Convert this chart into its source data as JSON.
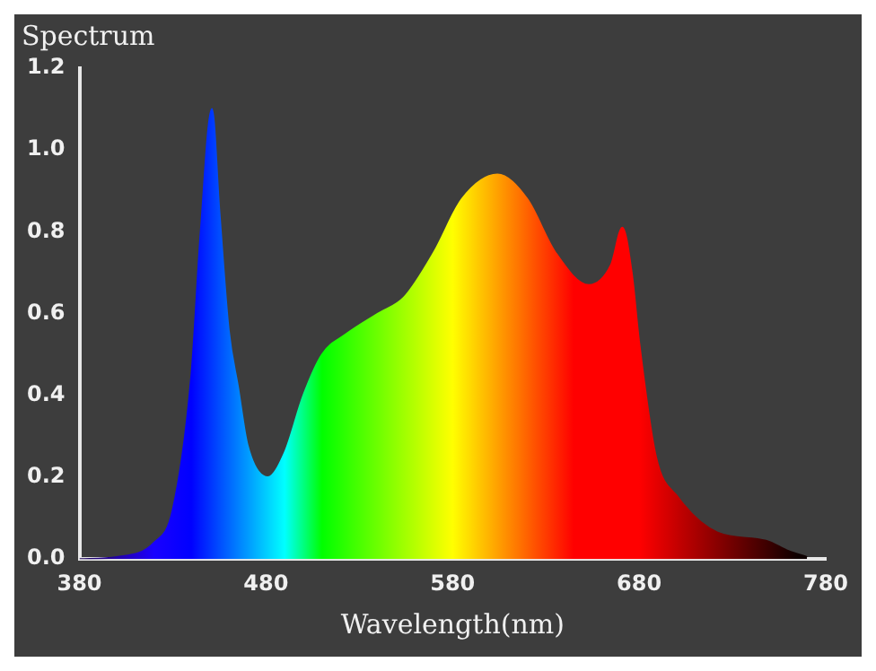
{
  "chart_data": {
    "type": "area",
    "title": "Spectrum",
    "xlabel": "Wavelength(nm)",
    "x": [
      380,
      400,
      420,
      430,
      440,
      445,
      451,
      455,
      460,
      465,
      470,
      481,
      490,
      500,
      510,
      523,
      540,
      554,
      570,
      585,
      604,
      620,
      635,
      653,
      665,
      671,
      676,
      680,
      689,
      701,
      722,
      748,
      760,
      770
    ],
    "values": [
      0,
      0.005,
      0.04,
      0.12,
      0.45,
      0.8,
      1.1,
      0.85,
      0.56,
      0.42,
      0.28,
      0.2,
      0.26,
      0.4,
      0.5,
      0.55,
      0.6,
      0.64,
      0.75,
      0.88,
      0.94,
      0.88,
      0.75,
      0.67,
      0.72,
      0.81,
      0.7,
      0.53,
      0.25,
      0.15,
      0.065,
      0.045,
      0.02,
      0.005
    ],
    "xlim": [
      380,
      780
    ],
    "xticks": [
      380,
      480,
      580,
      680,
      780
    ],
    "ylim": [
      0,
      1.2
    ],
    "yticks": [
      {
        "value": 0,
        "label": "0.0"
      },
      {
        "value": 0.2,
        "label": "0.2"
      },
      {
        "value": 0.4,
        "label": "0.4"
      },
      {
        "value": 0.6,
        "label": "0.6"
      },
      {
        "value": 0.8,
        "label": "0.8"
      },
      {
        "value": 1,
        "label": "1.0"
      },
      {
        "value": 1.2,
        "label": "1.2"
      }
    ],
    "grid": false,
    "legend": false,
    "marker": "none"
  }
}
